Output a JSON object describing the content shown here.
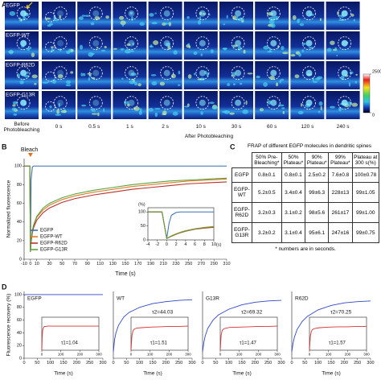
{
  "panel_labels": [
    "A",
    "B",
    "C",
    "D"
  ],
  "panel_a": {
    "rows": [
      "EGFP",
      "EGFP-WT",
      "EGFP-R62D",
      "EGFP-G13R"
    ],
    "columns": [
      "Before Photobleaching",
      "0 s",
      "0.5 s",
      "1 s",
      "2 s",
      "10 s",
      "30 s",
      "60 s",
      "120 s",
      "240 s"
    ],
    "group_label": "After Photobleaching",
    "colorbar_ticks": [
      2500,
      0
    ]
  },
  "chart_data": [
    {
      "type": "line",
      "annotation": "Bleach",
      "xlabel": "Time (s)",
      "ylabel": "Normalized fluorescence",
      "x": [
        -10,
        -5,
        -1,
        0,
        1,
        3,
        5,
        10,
        20,
        30,
        50,
        70,
        100,
        130,
        160,
        190,
        220,
        250,
        280,
        310
      ],
      "series": [
        {
          "name": "EGFP",
          "color": "#3a6fb5",
          "values": [
            100,
            100,
            100,
            8,
            85,
            99,
            100,
            100,
            100,
            100,
            100,
            100,
            100,
            100,
            100,
            100,
            100,
            100,
            100,
            100
          ]
        },
        {
          "name": "EGFP-WT",
          "color": "#e07b2a",
          "values": [
            100,
            100,
            100,
            8,
            20,
            30,
            36,
            45,
            53,
            58,
            64,
            68,
            72,
            75,
            78,
            80,
            82,
            84,
            85,
            86
          ]
        },
        {
          "name": "EGFP-R62D",
          "color": "#b8322a",
          "values": [
            100,
            100,
            100,
            8,
            18,
            28,
            34,
            42,
            50,
            55,
            61,
            65,
            69,
            72,
            75,
            77,
            79,
            81,
            82,
            83
          ]
        },
        {
          "name": "EGFP-G13R",
          "color": "#5aa33c",
          "values": [
            100,
            100,
            100,
            8,
            20,
            31,
            37,
            46,
            55,
            60,
            66,
            70,
            74,
            77,
            80,
            82,
            84,
            85,
            86,
            87
          ]
        }
      ],
      "xlim": [
        -10,
        310
      ],
      "ylim": [
        0,
        108
      ],
      "xticks": [
        -10,
        0,
        10,
        30,
        50,
        70,
        90,
        110,
        130,
        150,
        170,
        190,
        210,
        230,
        250,
        270,
        290,
        310
      ],
      "yticks": [
        0,
        20,
        40,
        60,
        80,
        100
      ],
      "legend": "lower left",
      "inset": {
        "xlabel": "(s)",
        "ylabel": "(%)",
        "x": [
          -4,
          -3,
          -2,
          -1,
          0,
          0.5,
          1,
          2,
          3,
          4,
          6,
          8,
          10
        ],
        "series": [
          {
            "color": "#3a6fb5",
            "values": [
              100,
              100,
              100,
              100,
              5,
              60,
              88,
              98,
              100,
              100,
              100,
              100,
              100
            ]
          },
          {
            "color": "#e07b2a",
            "values": [
              100,
              100,
              100,
              100,
              5,
              10,
              15,
              22,
              28,
              33,
              40,
              45,
              48
            ]
          },
          {
            "color": "#b8322a",
            "values": [
              100,
              100,
              100,
              100,
              5,
              9,
              13,
              20,
              26,
              31,
              38,
              42,
              45
            ]
          },
          {
            "color": "#5aa33c",
            "values": [
              100,
              100,
              100,
              100,
              5,
              10,
              14,
              21,
              27,
              32,
              39,
              44,
              47
            ]
          }
        ],
        "xlim": [
          -4,
          10
        ],
        "ylim": [
          0,
          115
        ],
        "xticks": [
          -4,
          -2,
          0,
          2,
          4,
          6,
          8,
          10
        ],
        "yticks": [
          0,
          50,
          100
        ]
      }
    },
    {
      "type": "line",
      "title": "EGFP",
      "xlabel": "Time (s)",
      "ylabel": "Fluorescence recovery (%)",
      "x": [
        0,
        5,
        10,
        20,
        40,
        60,
        100,
        150,
        200,
        250,
        300
      ],
      "series": [
        {
          "color": "#3046c8",
          "values": [
            99,
            100,
            100,
            100,
            100,
            100,
            100,
            100,
            100,
            100,
            100
          ]
        }
      ],
      "xlim": [
        0,
        300
      ],
      "ylim": [
        0,
        105
      ],
      "xticks": [
        0,
        50,
        100,
        150,
        200,
        250,
        300
      ],
      "yticks": [
        0,
        20,
        40,
        60,
        80,
        100
      ],
      "inset": {
        "annotation": "τ1=1.04",
        "x": [
          0,
          2,
          5,
          10,
          15,
          20,
          30,
          50,
          100,
          150,
          200,
          250,
          300
        ],
        "series": [
          {
            "color": "#d83030",
            "values": [
              0,
              40,
              62,
              70,
              72,
              72,
              73,
              73,
              73,
              73,
              73,
              73,
              73
            ]
          }
        ],
        "xlim": [
          0,
          300
        ],
        "ylim": [
          0,
          100
        ],
        "xticks": [
          0,
          100,
          200,
          300
        ]
      }
    },
    {
      "type": "line",
      "title": "WT",
      "annotation": "τ2=44.03",
      "xlabel": "Time (s)",
      "x": [
        0,
        5,
        10,
        20,
        40,
        60,
        100,
        150,
        200,
        250,
        300
      ],
      "series": [
        {
          "color": "#3046c8",
          "values": [
            10,
            30,
            40,
            52,
            65,
            72,
            80,
            86,
            89,
            91,
            92
          ]
        }
      ],
      "xlim": [
        0,
        300
      ],
      "ylim": [
        0,
        105
      ],
      "xticks": [
        0,
        50,
        100,
        150,
        200,
        250,
        300
      ],
      "inset": {
        "annotation": "τ1=1.51",
        "x": [
          0,
          2,
          5,
          10,
          15,
          20,
          30,
          50,
          100,
          150,
          200,
          250,
          300
        ],
        "series": [
          {
            "color": "#d83030",
            "values": [
              0,
              20,
              45,
              58,
              63,
              65,
              67,
              68,
              70,
              71,
              72,
              72,
              73
            ]
          }
        ],
        "xlim": [
          0,
          300
        ],
        "ylim": [
          0,
          100
        ],
        "xticks": [
          0,
          100,
          200,
          300
        ]
      }
    },
    {
      "type": "line",
      "title": "G13R",
      "annotation": "τ2=69.32",
      "xlabel": "Time (s)",
      "x": [
        0,
        5,
        10,
        20,
        40,
        60,
        100,
        150,
        200,
        250,
        300
      ],
      "series": [
        {
          "color": "#3046c8",
          "values": [
            10,
            25,
            35,
            47,
            60,
            68,
            77,
            84,
            88,
            90,
            91
          ]
        }
      ],
      "xlim": [
        0,
        300
      ],
      "ylim": [
        0,
        105
      ],
      "xticks": [
        0,
        50,
        100,
        150,
        200,
        250,
        300
      ],
      "inset": {
        "annotation": "τ1=1.47",
        "x": [
          0,
          2,
          5,
          10,
          15,
          20,
          30,
          50,
          100,
          150,
          200,
          250,
          300
        ],
        "series": [
          {
            "color": "#d83030",
            "values": [
              0,
              21,
              46,
              59,
              63,
              65,
              67,
              69,
              70,
              71,
              72,
              72,
              73
            ]
          }
        ],
        "xlim": [
          0,
          300
        ],
        "ylim": [
          0,
          100
        ],
        "xticks": [
          0,
          100,
          200,
          300
        ]
      }
    },
    {
      "type": "line",
      "title": "R62D",
      "annotation": "τ2=70.25",
      "xlabel": "Time (s)",
      "x": [
        0,
        5,
        10,
        20,
        40,
        60,
        100,
        150,
        200,
        250,
        300
      ],
      "series": [
        {
          "color": "#3046c8",
          "values": [
            10,
            24,
            33,
            45,
            58,
            66,
            76,
            83,
            87,
            89,
            90
          ]
        }
      ],
      "xlim": [
        0,
        300
      ],
      "ylim": [
        0,
        105
      ],
      "xticks": [
        0,
        50,
        100,
        150,
        200,
        250,
        300
      ],
      "inset": {
        "annotation": "τ1=1.57",
        "x": [
          0,
          2,
          5,
          10,
          15,
          20,
          30,
          50,
          100,
          150,
          200,
          250,
          300
        ],
        "series": [
          {
            "color": "#d83030",
            "values": [
              0,
              19,
              44,
              57,
              62,
              64,
              66,
              68,
              70,
              71,
              71,
              72,
              72
            ]
          }
        ],
        "xlim": [
          0,
          300
        ],
        "ylim": [
          0,
          100
        ],
        "xticks": [
          0,
          100,
          200,
          300
        ]
      }
    }
  ],
  "table": {
    "title": "FRAP of different EGFP molecules in dendritic spines",
    "header": [
      "50% Pre-Bleaching*",
      "50% Plateau*",
      "90% Plateau*",
      "99% Plateau*",
      "Plateau at 300 s(%)"
    ],
    "rows": [
      {
        "label": "EGFP",
        "cells": [
          "0.8±0.1",
          "0.8±0.1",
          "2.5±0.2",
          "7.6±0.8",
          "100±0.78"
        ]
      },
      {
        "label": "EGFP-WT",
        "cells": [
          "5.2±0.5",
          "3.4±0.4",
          "99±6.3",
          "228±13",
          "99±1.05"
        ]
      },
      {
        "label": "EGFP-R62D",
        "cells": [
          "3.2±0.3",
          "3.1±0.2",
          "98±5.6",
          "261±17",
          "99±1.00"
        ]
      },
      {
        "label": "EGFP-G13R",
        "cells": [
          "3.2±0.2",
          "3.1±0.4",
          "95±6.1",
          "247±16",
          "99±0.75"
        ]
      }
    ],
    "footnote": "* numbers are in seconds."
  }
}
